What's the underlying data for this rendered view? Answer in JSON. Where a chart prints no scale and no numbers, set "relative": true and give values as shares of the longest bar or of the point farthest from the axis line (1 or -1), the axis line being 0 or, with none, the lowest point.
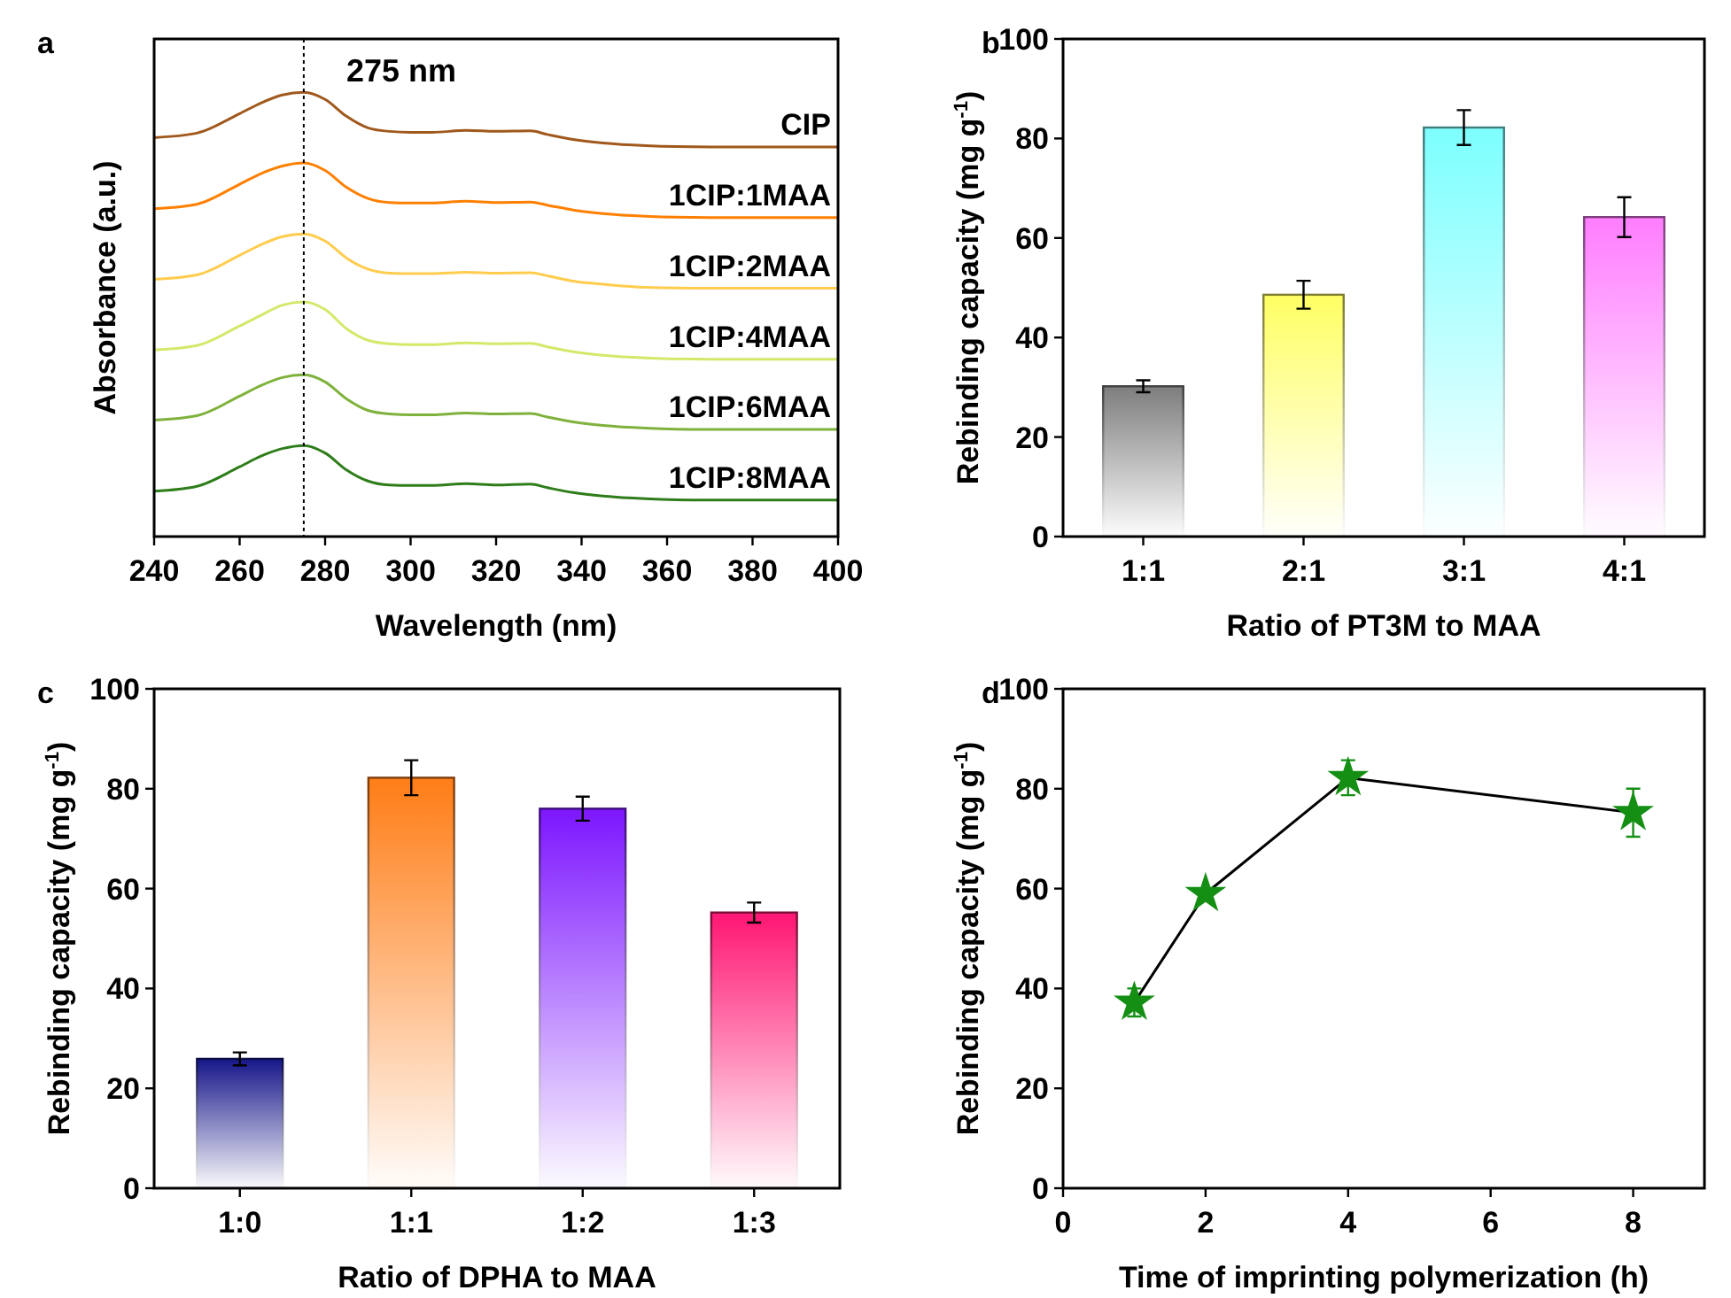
{
  "chart_data": [
    {
      "type": "line",
      "relative": true,
      "xlabel": "Wavelength (nm)",
      "ylabel": "Absorbance (a.u.)",
      "annotations": [
        "a"
      ],
      "xlim": [
        240,
        400
      ],
      "xticks": [
        240,
        260,
        280,
        300,
        320,
        340,
        360,
        380,
        400
      ],
      "legend": false,
      "ref_lines": [
        {
          "axis": "x",
          "value": 275,
          "label": "275 nm",
          "line_style": "dotted",
          "color": "#000000"
        }
      ],
      "x": [
        240,
        250,
        260,
        265,
        270,
        275,
        280,
        285,
        290,
        295,
        300,
        305,
        313,
        320,
        328,
        332,
        338,
        345,
        355,
        370,
        400
      ],
      "series": [
        {
          "name": "CIP",
          "color": "#a0581c",
          "values": [
            0.898,
            0.908,
            0.952,
            0.976,
            0.994,
            1,
            0.984,
            0.946,
            0.92,
            0.912,
            0.91,
            0.91,
            0.914,
            0.912,
            0.913,
            0.905,
            0.894,
            0.886,
            0.88,
            0.877,
            0.877
          ]
        },
        {
          "name": "1CIP:1MAA",
          "color": "#ff8000",
          "values": [
            0.738,
            0.748,
            0.793,
            0.817,
            0.834,
            0.841,
            0.824,
            0.786,
            0.761,
            0.752,
            0.751,
            0.751,
            0.755,
            0.752,
            0.753,
            0.746,
            0.735,
            0.727,
            0.721,
            0.718,
            0.718
          ]
        },
        {
          "name": "1CIP:2MAA",
          "color": "#ffcc4d",
          "values": [
            0.579,
            0.589,
            0.633,
            0.657,
            0.675,
            0.681,
            0.665,
            0.627,
            0.602,
            0.593,
            0.592,
            0.592,
            0.595,
            0.593,
            0.594,
            0.587,
            0.575,
            0.568,
            0.561,
            0.559,
            0.559
          ]
        },
        {
          "name": "1CIP:4MAA",
          "color": "#d4e86a",
          "values": [
            0.42,
            0.43,
            0.474,
            0.498,
            0.521,
            0.528,
            0.511,
            0.468,
            0.442,
            0.434,
            0.432,
            0.432,
            0.436,
            0.434,
            0.435,
            0.427,
            0.416,
            0.408,
            0.402,
            0.399,
            0.399
          ]
        },
        {
          "name": "1CIP:6MAA",
          "color": "#7fb23c",
          "values": [
            0.262,
            0.272,
            0.316,
            0.34,
            0.358,
            0.364,
            0.348,
            0.31,
            0.284,
            0.276,
            0.274,
            0.274,
            0.278,
            0.276,
            0.277,
            0.269,
            0.258,
            0.25,
            0.244,
            0.241,
            0.241
          ]
        },
        {
          "name": "1CIP:8MAA",
          "color": "#2e7d1a",
          "values": [
            0.102,
            0.113,
            0.157,
            0.181,
            0.198,
            0.205,
            0.188,
            0.15,
            0.125,
            0.116,
            0.115,
            0.115,
            0.119,
            0.116,
            0.118,
            0.11,
            0.099,
            0.091,
            0.085,
            0.082,
            0.082
          ]
        }
      ]
    },
    {
      "type": "bar",
      "xlabel": "Ratio of PT3M to MAA",
      "ylabel": "Rebinding capacity (mg g$^{-1}$)",
      "annotations": [
        "b"
      ],
      "categories": [
        "1:1",
        "2:1",
        "3:1",
        "4:1"
      ],
      "values": [
        30.2,
        48.6,
        82.2,
        64.2
      ],
      "errors": [
        1.2,
        2.8,
        3.5,
        4.0
      ],
      "colors": [
        "#808080",
        "#ffff66",
        "#80ffff",
        "#ff80ff"
      ],
      "ylim": [
        0,
        100
      ],
      "yticks": [
        0,
        20,
        40,
        60,
        80,
        100
      ],
      "legend": false
    },
    {
      "type": "bar",
      "xlabel": "Ratio of DPHA to MAA",
      "ylabel": "Rebinding capacity (mg g$^{-1}$)",
      "annotations": [
        "c"
      ],
      "categories": [
        "1:0",
        "1:1",
        "1:2",
        "1:3"
      ],
      "values": [
        25.9,
        82.2,
        76.0,
        55.2
      ],
      "errors": [
        1.3,
        3.5,
        2.4,
        2.0
      ],
      "colors": [
        "#1a1a8c",
        "#ff7f1a",
        "#7f1aff",
        "#ff1a75"
      ],
      "ylim": [
        0,
        100
      ],
      "yticks": [
        0,
        20,
        40,
        60,
        80,
        100
      ],
      "legend": false
    },
    {
      "type": "line",
      "xlabel": "Time of imprinting polymerization (h)",
      "ylabel": "Rebinding capacity (mg g$^{-1}$)",
      "annotations": [
        "d"
      ],
      "x": [
        1,
        2,
        4,
        8
      ],
      "xlim": [
        0,
        9
      ],
      "xticks": [
        0,
        2,
        4,
        6,
        8
      ],
      "ylim": [
        0,
        100
      ],
      "yticks": [
        0,
        20,
        40,
        60,
        80,
        100
      ],
      "marker": "star",
      "legend": false,
      "series": [
        {
          "color": "#148f14",
          "values": [
            37.2,
            59.0,
            82.2,
            75.2
          ],
          "errors": [
            2.8,
            null,
            3.5,
            4.8
          ]
        }
      ]
    }
  ]
}
